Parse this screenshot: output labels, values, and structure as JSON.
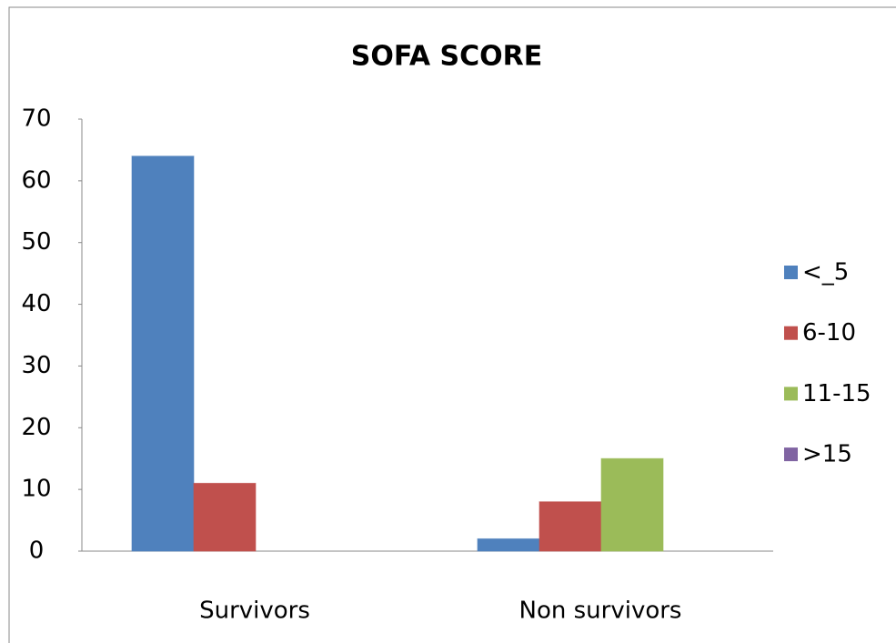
{
  "chart_data": {
    "type": "bar",
    "title": "SOFA SCORE",
    "categories": [
      "Survivors",
      "Non survivors"
    ],
    "series": [
      {
        "name": "<_5",
        "color": "#4f81bd",
        "values": [
          64,
          2
        ]
      },
      {
        "name": "6-10",
        "color": "#c0504d",
        "values": [
          11,
          8
        ]
      },
      {
        "name": "11-15",
        "color": "#9bbb59",
        "values": [
          0,
          15
        ]
      },
      {
        "name": ">15",
        "color": "#8064a2",
        "values": [
          0,
          0
        ]
      }
    ],
    "ylim": [
      0,
      70
    ],
    "yticks": [
      0,
      10,
      20,
      30,
      40,
      50,
      60,
      70
    ],
    "legend": "right"
  }
}
